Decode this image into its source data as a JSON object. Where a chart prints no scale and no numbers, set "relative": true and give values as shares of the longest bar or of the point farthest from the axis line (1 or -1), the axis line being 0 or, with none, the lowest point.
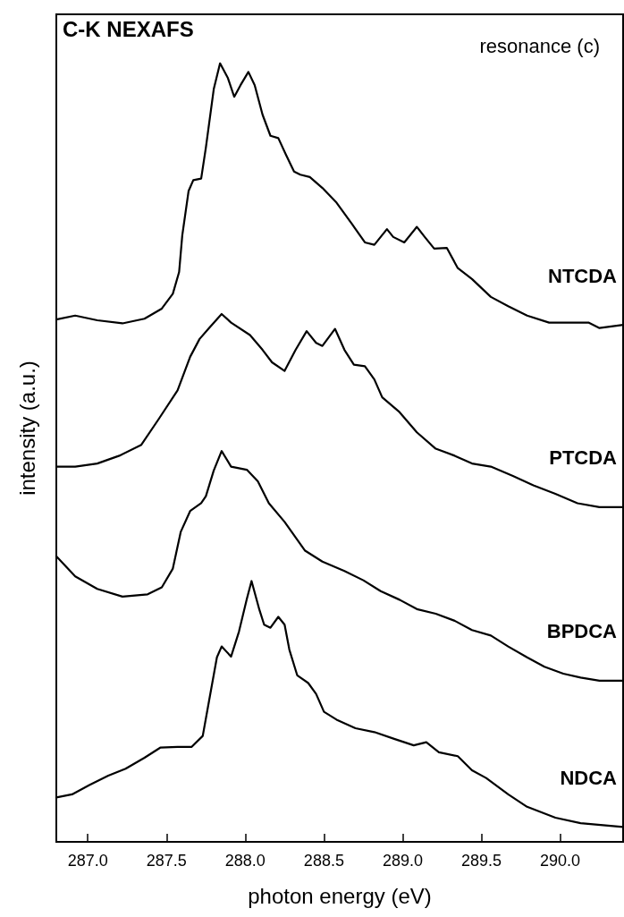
{
  "chart_data": {
    "type": "line",
    "title": "C-K NEXAFS",
    "xlabel": "photon energy (eV)",
    "ylabel": "intensity (a.u.)",
    "annotations": [
      "resonance (c)"
    ],
    "relative": true,
    "legend": false,
    "grid": false,
    "marker": "none",
    "line_style": "solid",
    "xlim": [
      286.8,
      290.4
    ],
    "xticks": [
      {
        "value": 287,
        "label": "287.0"
      },
      {
        "value": 287.5,
        "label": "287.5"
      },
      {
        "value": 288,
        "label": "288.0"
      },
      {
        "value": 288.5,
        "label": "288.5"
      },
      {
        "value": 289,
        "label": "289.0"
      },
      {
        "value": 289.5,
        "label": "289.5"
      },
      {
        "value": 290,
        "label": "290.0"
      }
    ],
    "series": [
      {
        "name": "NTCDA",
        "color": "#000000",
        "x": [
          286.8,
          286.92,
          287.06,
          287.22,
          287.36,
          287.47,
          287.54,
          287.58,
          287.6,
          287.64,
          287.67,
          287.72,
          287.75,
          287.8,
          287.84,
          287.89,
          287.93,
          287.97,
          288.02,
          288.06,
          288.11,
          288.16,
          288.21,
          288.26,
          288.31,
          288.35,
          288.41,
          288.49,
          288.58,
          288.68,
          288.76,
          288.82,
          288.9,
          288.94,
          289.01,
          289.09,
          289.14,
          289.2,
          289.28,
          289.35,
          289.44,
          289.56,
          289.67,
          289.79,
          289.93,
          290.02,
          290.18,
          290.25,
          290.4
        ],
        "values": [
          0.671,
          0.676,
          0.67,
          0.666,
          0.672,
          0.685,
          0.704,
          0.732,
          0.779,
          0.836,
          0.85,
          0.852,
          0.892,
          0.967,
          1.0,
          0.981,
          0.957,
          0.972,
          0.989,
          0.972,
          0.934,
          0.907,
          0.904,
          0.882,
          0.861,
          0.857,
          0.854,
          0.84,
          0.821,
          0.793,
          0.77,
          0.767,
          0.787,
          0.777,
          0.77,
          0.79,
          0.777,
          0.762,
          0.763,
          0.737,
          0.723,
          0.7,
          0.688,
          0.676,
          0.667,
          0.667,
          0.667,
          0.66,
          0.664
        ]
      },
      {
        "name": "PTCDA",
        "color": "#000000",
        "x": [
          286.8,
          286.92,
          287.06,
          287.2,
          287.34,
          287.45,
          287.57,
          287.65,
          287.71,
          287.77,
          287.85,
          287.91,
          288.03,
          288.11,
          288.17,
          288.25,
          288.32,
          288.39,
          288.45,
          288.49,
          288.57,
          288.63,
          288.69,
          288.76,
          288.82,
          288.87,
          288.98,
          289.09,
          289.21,
          289.33,
          289.44,
          289.56,
          289.7,
          289.83,
          289.97,
          290.11,
          290.25,
          290.4
        ],
        "values": [
          0.482,
          0.482,
          0.486,
          0.496,
          0.51,
          0.543,
          0.58,
          0.623,
          0.646,
          0.66,
          0.678,
          0.667,
          0.651,
          0.632,
          0.616,
          0.605,
          0.632,
          0.656,
          0.641,
          0.637,
          0.659,
          0.632,
          0.613,
          0.611,
          0.594,
          0.571,
          0.552,
          0.526,
          0.505,
          0.496,
          0.486,
          0.482,
          0.47,
          0.458,
          0.447,
          0.435,
          0.43,
          0.43
        ]
      },
      {
        "name": "BPDCA",
        "color": "#000000",
        "x": [
          286.8,
          286.92,
          287.06,
          287.22,
          287.38,
          287.47,
          287.54,
          287.59,
          287.65,
          287.72,
          287.75,
          287.8,
          287.85,
          287.91,
          288.01,
          288.08,
          288.15,
          288.25,
          288.38,
          288.49,
          288.63,
          288.75,
          288.86,
          288.98,
          289.09,
          289.21,
          289.33,
          289.44,
          289.56,
          289.67,
          289.79,
          289.9,
          290.02,
          290.13,
          290.25,
          290.4
        ],
        "values": [
          0.367,
          0.341,
          0.325,
          0.315,
          0.318,
          0.327,
          0.351,
          0.398,
          0.425,
          0.435,
          0.444,
          0.477,
          0.502,
          0.482,
          0.478,
          0.463,
          0.435,
          0.411,
          0.374,
          0.36,
          0.348,
          0.336,
          0.322,
          0.311,
          0.299,
          0.293,
          0.284,
          0.272,
          0.265,
          0.251,
          0.237,
          0.225,
          0.216,
          0.211,
          0.207,
          0.207
        ]
      },
      {
        "name": "NDCA",
        "color": "#000000",
        "x": [
          286.8,
          286.9,
          287.01,
          287.13,
          287.24,
          287.36,
          287.46,
          287.57,
          287.66,
          287.73,
          287.77,
          287.82,
          287.85,
          287.91,
          287.96,
          288.01,
          288.04,
          288.09,
          288.12,
          288.16,
          288.21,
          288.25,
          288.28,
          288.33,
          288.4,
          288.45,
          288.5,
          288.58,
          288.7,
          288.82,
          288.95,
          289.07,
          289.15,
          289.23,
          289.35,
          289.44,
          289.53,
          289.67,
          289.79,
          289.97,
          290.13,
          290.4
        ],
        "values": [
          0.057,
          0.061,
          0.073,
          0.085,
          0.094,
          0.108,
          0.121,
          0.122,
          0.122,
          0.136,
          0.181,
          0.237,
          0.251,
          0.238,
          0.27,
          0.312,
          0.335,
          0.298,
          0.279,
          0.275,
          0.289,
          0.279,
          0.247,
          0.214,
          0.204,
          0.19,
          0.167,
          0.157,
          0.146,
          0.141,
          0.132,
          0.124,
          0.128,
          0.115,
          0.11,
          0.092,
          0.082,
          0.061,
          0.045,
          0.031,
          0.024,
          0.019
        ]
      }
    ]
  }
}
